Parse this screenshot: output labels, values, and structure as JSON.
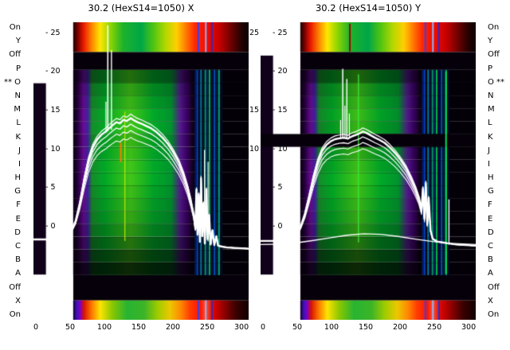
{
  "figure": {
    "panels": [
      {
        "id": "x",
        "title": "30.2 (HexS14=1050) X"
      },
      {
        "id": "y",
        "title": "30.2 (HexS14=1050) Y"
      }
    ],
    "side_labels_left": [
      "On",
      "Y",
      "Off",
      "P",
      "** O",
      "N",
      "M",
      "L",
      "K",
      "J",
      "I",
      "H",
      "G",
      "F",
      "E",
      "D",
      "C",
      "B",
      "A",
      "Off",
      "X",
      "On"
    ],
    "side_labels_right": [
      "On",
      "Y",
      "Off",
      "P",
      "O **",
      "N",
      "M",
      "L",
      "K",
      "J",
      "I",
      "H",
      "G",
      "F",
      "E",
      "D",
      "C",
      "B",
      "A",
      "Off",
      "X",
      "On"
    ],
    "y_tick_labels": [
      "- 25",
      "- 20",
      "- 15",
      "- 10",
      "- 5",
      "- 0"
    ],
    "mid_ticks": [
      {
        "label": "25",
        "index": 0
      },
      {
        "label": "15",
        "index": 2
      },
      {
        "label": "10",
        "index": 3
      }
    ],
    "x_tick_labels": [
      "0",
      "50",
      "100",
      "150",
      "200",
      "250",
      "300"
    ]
  },
  "chart_data": {
    "type": "heatmap",
    "subtype": "wire-scanner-profile-waterfall-with-overlaid-traces",
    "titles": [
      "30.2 (HexS14=1050) X",
      "30.2 (HexS14=1050) Y"
    ],
    "row_labels": [
      "On",
      "Y",
      "Off",
      "P",
      "O",
      "N",
      "M",
      "L",
      "K",
      "J",
      "I",
      "H",
      "G",
      "F",
      "E",
      "D",
      "C",
      "B",
      "A",
      "Off",
      "X",
      "On"
    ],
    "selected_wire": "O",
    "x_axis": {
      "ticks": [
        0,
        50,
        100,
        150,
        200,
        250,
        300
      ],
      "rx0": 0.011,
      "rx_per_unit": 0.0031867
    },
    "y_axis": {
      "ticks": [
        25,
        20,
        15,
        10,
        5,
        0
      ],
      "top_ry": 0.037,
      "step_ry": 0.13
    },
    "colors": {
      "dark": "#06000a",
      "strip": "#10001a",
      "curve": "#ffffff",
      "background": "#ffffff"
    },
    "geometry": {
      "heat_x0": 0.185,
      "strip_w": 0.058,
      "bands": {
        "on_top": [
          0,
          0.1
        ],
        "off_top": [
          0.1,
          0.16
        ],
        "beam": [
          0.16,
          0.85
        ],
        "off_bottom": [
          0.85,
          0.935
        ],
        "on_bottom": [
          0.935,
          1.0
        ]
      }
    },
    "rainbow_top": [
      [
        0.185,
        "#1a0000"
      ],
      [
        0.205,
        "#7a0000"
      ],
      [
        0.232,
        "#e81800"
      ],
      [
        0.272,
        "#ff8800"
      ],
      [
        0.31,
        "#ffe800"
      ],
      [
        0.355,
        "#93d600"
      ],
      [
        0.415,
        "#1fb32a"
      ],
      [
        0.5,
        "#00a648"
      ],
      [
        0.555,
        "#4cc414"
      ],
      [
        0.615,
        "#b4d800"
      ],
      [
        0.665,
        "#ffd000"
      ],
      [
        0.71,
        "#ff7700"
      ],
      [
        0.75,
        "#ff2a00"
      ],
      [
        0.815,
        "#ee0800"
      ],
      [
        0.868,
        "#c00000"
      ],
      [
        0.918,
        "#6e0000"
      ],
      [
        0.965,
        "#260000"
      ],
      [
        1,
        "#0c0000"
      ]
    ],
    "rainbow_bottom": [
      [
        0.185,
        "#140026"
      ],
      [
        0.2,
        "#3a14b4"
      ],
      [
        0.216,
        "#7a00c8"
      ],
      [
        0.235,
        "#d81400"
      ],
      [
        0.272,
        "#ff7c00"
      ],
      [
        0.31,
        "#ffe400"
      ],
      [
        0.365,
        "#8cc800"
      ],
      [
        0.435,
        "#28b432"
      ],
      [
        0.515,
        "#3cb428"
      ],
      [
        0.578,
        "#a0cc00"
      ],
      [
        0.635,
        "#ecc800"
      ],
      [
        0.685,
        "#ff8800"
      ],
      [
        0.728,
        "#ff3c00"
      ],
      [
        0.775,
        "#ff1400"
      ],
      [
        0.8,
        "#ff5030"
      ],
      [
        0.838,
        "#dc0400"
      ],
      [
        0.888,
        "#8e0000"
      ],
      [
        0.94,
        "#3c0000"
      ],
      [
        1,
        "#100000"
      ]
    ],
    "beam_stops": [
      [
        0.185,
        10,
        0,
        16,
        0
      ],
      [
        0.205,
        36,
        0,
        62,
        1
      ],
      [
        0.232,
        106,
        10,
        150,
        1
      ],
      [
        0.253,
        64,
        34,
        160,
        1
      ],
      [
        0.272,
        22,
        140,
        42,
        1
      ],
      [
        0.33,
        0,
        168,
        38,
        1
      ],
      [
        0.45,
        66,
        198,
        24,
        1
      ],
      [
        0.56,
        0,
        168,
        40,
        1
      ],
      [
        0.64,
        0,
        148,
        44,
        1
      ],
      [
        0.683,
        84,
        24,
        142,
        1
      ],
      [
        0.713,
        58,
        0,
        100,
        1
      ],
      [
        0.74,
        18,
        0,
        28,
        1
      ],
      [
        0.756,
        7,
        0,
        12,
        0
      ],
      [
        0.87,
        5,
        0,
        9,
        0
      ],
      [
        1,
        4,
        0,
        7,
        0
      ]
    ],
    "stripes": [
      {
        "r": 0.753,
        "w": 2,
        "c": "#001a59"
      },
      {
        "r": 0.7615,
        "w": 2,
        "c": "#0041c8"
      },
      {
        "r": 0.7705,
        "w": 2,
        "c": "#000a14"
      },
      {
        "r": 0.779,
        "w": 2,
        "c": "#0a78a0"
      },
      {
        "r": 0.789,
        "w": 3,
        "c": "#001026"
      },
      {
        "r": 0.799,
        "w": 2,
        "c": "#00a070"
      },
      {
        "r": 0.808,
        "w": 3,
        "c": "#00204e"
      },
      {
        "r": 0.8185,
        "w": 2,
        "c": "#00b447"
      },
      {
        "r": 0.8295,
        "w": 3,
        "c": "#001040"
      },
      {
        "r": 0.8415,
        "w": 2,
        "c": "#0050bb"
      },
      {
        "r": 0.853,
        "w": 3,
        "c": "#001a30"
      },
      {
        "r": 0.8625,
        "w": 2,
        "c": "#00a082"
      },
      {
        "r": 0.873,
        "w": 3,
        "c": "#000a20"
      }
    ],
    "on_band_lines": [
      {
        "r": 0.766,
        "w": 2,
        "c": "#2a46ff"
      },
      {
        "r": 0.801,
        "w": 2,
        "c": "#8cb4ff"
      },
      {
        "r": 0.829,
        "w": 2,
        "c": "#2330cc"
      }
    ],
    "trace_bundle": [
      {
        "dy": 0,
        "lw": 2.4
      },
      {
        "dy": 0.02,
        "lw": 1.3
      },
      {
        "dy": 0.041,
        "lw": 1.2
      },
      {
        "dy": 0.064,
        "lw": 1.1
      },
      {
        "dy": -0.013,
        "lw": 1.2
      }
    ],
    "panels": [
      {
        "title": "30.2 (HexS14=1050) X",
        "row_intensity": [
          0.55,
          0.8,
          0.9,
          1.0,
          1.0,
          0.92,
          0.96,
          1.0,
          1.0,
          0.95,
          0.9,
          0.84,
          0.74,
          0.58,
          0.38,
          0.2
        ],
        "strip": {
          "y0": 0.205,
          "y1": 0.848
        },
        "accents": [
          {
            "r": 0.425,
            "c": "#b9e800",
            "y0": 0.3,
            "y1": 0.735,
            "w": 1.2
          },
          {
            "r": 0.406,
            "c": "#ff7a00",
            "y0": 0.405,
            "y1": 0.47,
            "w": 2
          }
        ],
        "spikes": [
          {
            "r": 0.3455,
            "top": 0.012,
            "base": 0.365,
            "w": 1.6
          },
          {
            "r": 0.3625,
            "top": 0.095,
            "base": 0.36,
            "w": 1.4
          },
          {
            "r": 0.337,
            "top": 0.268,
            "base": 0.37,
            "w": 1.2
          },
          {
            "r": 0.795,
            "top": 0.43,
            "base": 0.73,
            "w": 1.3
          },
          {
            "r": 0.8115,
            "top": 0.47,
            "base": 0.735,
            "w": 1.2
          }
        ],
        "curve": [
          [
            0,
            0.73
          ],
          [
            0.06,
            0.73
          ],
          [
            0.12,
            0.728
          ],
          [
            0.155,
            0.722
          ],
          [
            0.175,
            0.704
          ],
          [
            0.196,
            0.668
          ],
          [
            0.215,
            0.61
          ],
          [
            0.236,
            0.528
          ],
          [
            0.256,
            0.462
          ],
          [
            0.276,
            0.42
          ],
          [
            0.296,
            0.394
          ],
          [
            0.316,
            0.378
          ],
          [
            0.338,
            0.366
          ],
          [
            0.352,
            0.356
          ],
          [
            0.368,
            0.346
          ],
          [
            0.385,
            0.336
          ],
          [
            0.402,
            0.34
          ],
          [
            0.418,
            0.328
          ],
          [
            0.434,
            0.332
          ],
          [
            0.452,
            0.322
          ],
          [
            0.468,
            0.33
          ],
          [
            0.484,
            0.336
          ],
          [
            0.502,
            0.341
          ],
          [
            0.522,
            0.348
          ],
          [
            0.546,
            0.356
          ],
          [
            0.572,
            0.369
          ],
          [
            0.6,
            0.388
          ],
          [
            0.626,
            0.41
          ],
          [
            0.65,
            0.437
          ],
          [
            0.676,
            0.471
          ],
          [
            0.697,
            0.509
          ],
          [
            0.716,
            0.553
          ],
          [
            0.731,
            0.598
          ],
          [
            0.745,
            0.649
          ],
          [
            0.7525,
            0.694
          ],
          [
            0.7575,
            0.562
          ],
          [
            0.7625,
            0.713
          ],
          [
            0.768,
            0.578
          ],
          [
            0.7735,
            0.738
          ],
          [
            0.779,
            0.524
          ],
          [
            0.7845,
            0.719
          ],
          [
            0.7905,
            0.608
          ],
          [
            0.7965,
            0.744
          ],
          [
            0.8035,
            0.562
          ],
          [
            0.8095,
            0.729
          ],
          [
            0.8165,
            0.648
          ],
          [
            0.8235,
            0.747
          ],
          [
            0.832,
            0.699
          ],
          [
            0.8405,
            0.749
          ],
          [
            0.85,
            0.719
          ],
          [
            0.858,
            0.751
          ],
          [
            0.876,
            0.754
          ],
          [
            0.9,
            0.757
          ],
          [
            0.95,
            0.759
          ],
          [
            1,
            0.761
          ]
        ],
        "extra_curves": []
      },
      {
        "title": "30.2 (HexS14=1050) Y",
        "row_intensity": [
          0.5,
          0.78,
          0.88,
          0.95,
          0.9,
          0.12,
          0.86,
          0.95,
          1.0,
          0.96,
          0.9,
          0.84,
          0.74,
          0.58,
          0.38,
          0.2
        ],
        "strip": {
          "y0": 0.112,
          "y1": 0.848
        },
        "accents": [
          {
            "r": 0.455,
            "c": "#3ae83a",
            "y0": 0.175,
            "y1": 0.74,
            "w": 1.3
          },
          {
            "r": 0.415,
            "c": "#a00000",
            "y0": 0.005,
            "y1": 0.098,
            "w": 2
          },
          {
            "r": 0.862,
            "c": "#00e05a",
            "y0": 0.165,
            "y1": 0.845,
            "w": 2
          }
        ],
        "spikes": [
          {
            "r": 0.372,
            "top": 0.33,
            "base": 0.392,
            "w": 1.2
          },
          {
            "r": 0.382,
            "top": 0.158,
            "base": 0.39,
            "w": 1.5
          },
          {
            "r": 0.392,
            "top": 0.282,
            "base": 0.39,
            "w": 1.2
          },
          {
            "r": 0.401,
            "top": 0.192,
            "base": 0.39,
            "w": 1.4
          },
          {
            "r": 0.4125,
            "top": 0.308,
            "base": 0.388,
            "w": 1.2
          },
          {
            "r": 0.8755,
            "top": 0.597,
            "base": 0.746,
            "w": 1.4
          }
        ],
        "curve": [
          [
            0,
            0.735
          ],
          [
            0.05,
            0.735
          ],
          [
            0.1,
            0.733
          ],
          [
            0.14,
            0.728
          ],
          [
            0.166,
            0.714
          ],
          [
            0.186,
            0.688
          ],
          [
            0.206,
            0.644
          ],
          [
            0.226,
            0.584
          ],
          [
            0.246,
            0.52
          ],
          [
            0.266,
            0.468
          ],
          [
            0.286,
            0.432
          ],
          [
            0.306,
            0.412
          ],
          [
            0.326,
            0.4
          ],
          [
            0.346,
            0.393
          ],
          [
            0.366,
            0.39
          ],
          [
            0.386,
            0.388
          ],
          [
            0.406,
            0.391
          ],
          [
            0.426,
            0.383
          ],
          [
            0.446,
            0.378
          ],
          [
            0.462,
            0.373
          ],
          [
            0.475,
            0.367
          ],
          [
            0.492,
            0.372
          ],
          [
            0.512,
            0.38
          ],
          [
            0.532,
            0.388
          ],
          [
            0.552,
            0.395
          ],
          [
            0.576,
            0.405
          ],
          [
            0.6,
            0.42
          ],
          [
            0.626,
            0.44
          ],
          [
            0.65,
            0.462
          ],
          [
            0.676,
            0.49
          ],
          [
            0.7,
            0.524
          ],
          [
            0.72,
            0.557
          ],
          [
            0.736,
            0.59
          ],
          [
            0.748,
            0.63
          ],
          [
            0.7545,
            0.558
          ],
          [
            0.7615,
            0.66
          ],
          [
            0.768,
            0.54
          ],
          [
            0.7745,
            0.678
          ],
          [
            0.7815,
            0.59
          ],
          [
            0.79,
            0.7
          ],
          [
            0.8,
            0.728
          ],
          [
            0.82,
            0.737
          ],
          [
            0.845,
            0.74
          ],
          [
            0.87,
            0.743
          ],
          [
            0.91,
            0.747
          ],
          [
            1,
            0.751
          ]
        ],
        "extra_curves": [
          [
            [
              0,
              0.747
            ],
            [
              0.08,
              0.746
            ],
            [
              0.16,
              0.742
            ],
            [
              0.24,
              0.734
            ],
            [
              0.32,
              0.725
            ],
            [
              0.4,
              0.716
            ],
            [
              0.48,
              0.711
            ],
            [
              0.56,
              0.713
            ],
            [
              0.64,
              0.72
            ],
            [
              0.72,
              0.729
            ],
            [
              0.8,
              0.737
            ],
            [
              0.88,
              0.743
            ],
            [
              1,
              0.747
            ]
          ]
        ]
      }
    ]
  }
}
